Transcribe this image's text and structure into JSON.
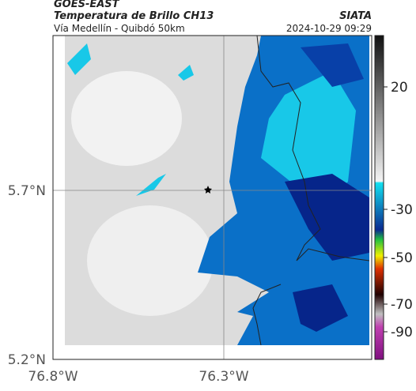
{
  "header": {
    "source": "GOES-EAST",
    "title": "Temperatura de Brillo CH13",
    "subtitle": "Vía Medellín - Quibdó 50km",
    "agency": "SIATA",
    "timestamp": "2024-10-29 09:29"
  },
  "map": {
    "lat_labels": [
      "5.7°N",
      "5.2°N"
    ],
    "lon_labels": [
      "76.8°W",
      "76.3°W"
    ]
  },
  "colorbar": {
    "ticks": [
      20,
      -30,
      -50,
      -70,
      -90
    ]
  }
}
